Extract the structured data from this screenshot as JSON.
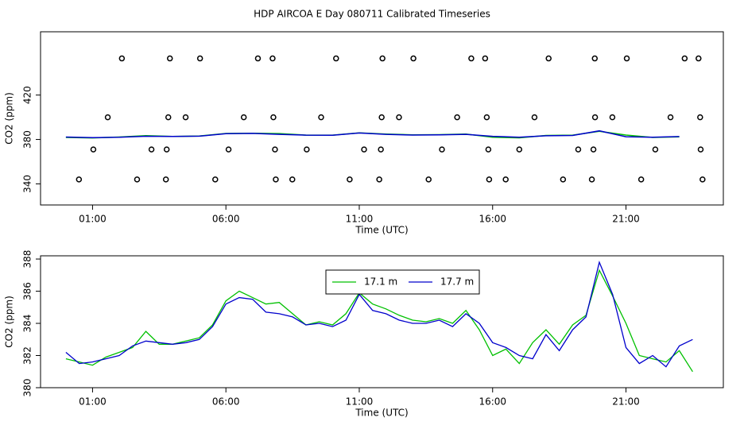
{
  "chart_data": [
    {
      "type": "line",
      "title": "HDP AIRCOA E  Day 080711  Calibrated Timeseries",
      "xlabel": "Time (UTC)",
      "ylabel": "CO2 (ppm)",
      "xlim": [
        -0.95,
        24.65
      ],
      "ylim": [
        321,
        477
      ],
      "xticks": [
        {
          "value": 1,
          "label": "01:00"
        },
        {
          "value": 6,
          "label": "06:00"
        },
        {
          "value": 11,
          "label": "11:00"
        },
        {
          "value": 16,
          "label": "16:00"
        },
        {
          "value": 21,
          "label": "21:00"
        }
      ],
      "yticks": [
        340,
        380,
        420
      ],
      "x": [
        0,
        1,
        2,
        3,
        4,
        5,
        6,
        7,
        8,
        9,
        10,
        11,
        12,
        13,
        14,
        15,
        16,
        17,
        18,
        19,
        20,
        21,
        22,
        23
      ],
      "series": [
        {
          "color": "#00c000",
          "values": [
            381.8,
            381.4,
            382.2,
            383.5,
            382.7,
            383.1,
            385.4,
            385.6,
            385.3,
            383.9,
            383.9,
            385.9,
            384.9,
            384.2,
            384.3,
            384.8,
            382.0,
            381.5,
            383.6,
            383.9,
            387.3,
            384.0,
            381.8,
            382.3
          ]
        },
        {
          "color": "#0000cc",
          "values": [
            382.2,
            381.6,
            382.0,
            382.9,
            382.7,
            383.0,
            385.2,
            385.5,
            384.6,
            383.9,
            383.8,
            385.8,
            384.6,
            384.0,
            384.2,
            384.6,
            382.8,
            382.0,
            383.3,
            383.6,
            387.8,
            382.5,
            382.0,
            382.6
          ]
        }
      ],
      "points": {
        "x": [
          2.1,
          3.9,
          5.03,
          7.2,
          7.75,
          10.13,
          11.87,
          13.03,
          15.2,
          15.72,
          18.1,
          19.83,
          21.03,
          23.2,
          23.72,
          1.57,
          3.84,
          4.49,
          6.67,
          7.78,
          9.57,
          11.84,
          12.49,
          14.67,
          15.78,
          17.57,
          19.84,
          20.49,
          22.67,
          23.78,
          1.03,
          3.21,
          3.78,
          6.1,
          7.84,
          9.03,
          11.18,
          11.81,
          14.1,
          15.84,
          17.0,
          19.21,
          19.78,
          22.1,
          23.8,
          0.49,
          2.67,
          3.75,
          5.6,
          7.87,
          8.49,
          10.64,
          11.75,
          13.6,
          15.87,
          16.49,
          18.64,
          19.72,
          21.57,
          23.87
        ],
        "y": [
          453,
          453,
          453,
          453,
          453,
          453,
          453,
          453,
          453,
          453,
          453,
          453,
          453,
          453,
          453,
          400,
          400,
          400,
          400,
          400,
          400,
          400,
          400,
          400,
          400,
          400,
          400,
          400,
          400,
          400,
          371,
          371,
          371,
          371,
          371,
          371,
          371,
          371,
          371,
          371,
          371,
          371,
          371,
          371,
          371,
          344,
          344,
          344,
          344,
          344,
          344,
          344,
          344,
          344,
          344,
          344,
          344,
          344,
          344,
          344
        ]
      }
    },
    {
      "type": "line",
      "xlabel": "Time (UTC)",
      "ylabel": "CO2 (ppm)",
      "xlim": [
        -0.95,
        24.65
      ],
      "ylim": [
        380,
        388.2
      ],
      "xticks": [
        {
          "value": 1,
          "label": "01:00"
        },
        {
          "value": 6,
          "label": "06:00"
        },
        {
          "value": 11,
          "label": "11:00"
        },
        {
          "value": 16,
          "label": "16:00"
        },
        {
          "value": 21,
          "label": "21:00"
        }
      ],
      "yticks": [
        380,
        382,
        384,
        386,
        388
      ],
      "legend": "top-center",
      "x": [
        0,
        0.5,
        1,
        1.5,
        2,
        2.5,
        3,
        3.5,
        4,
        4.5,
        5,
        5.5,
        6,
        6.5,
        7,
        7.5,
        8,
        8.5,
        9,
        9.5,
        10,
        10.5,
        11,
        11.5,
        12,
        12.5,
        13,
        13.5,
        14,
        14.5,
        15,
        15.5,
        16,
        16.5,
        17,
        17.5,
        18,
        18.5,
        19,
        19.5,
        20,
        20.5,
        21,
        21.5,
        22,
        22.5,
        23,
        23.5
      ],
      "series": [
        {
          "name": "17.1 m",
          "color": "#00c000",
          "values": [
            381.8,
            381.6,
            381.4,
            381.9,
            382.2,
            382.5,
            383.5,
            382.7,
            382.7,
            382.9,
            383.1,
            383.9,
            385.4,
            386.0,
            385.6,
            385.2,
            385.3,
            384.6,
            383.9,
            384.1,
            383.9,
            384.6,
            385.9,
            385.2,
            384.9,
            384.5,
            384.2,
            384.1,
            384.3,
            384.0,
            384.8,
            383.6,
            382.0,
            382.4,
            381.5,
            382.8,
            383.6,
            382.7,
            383.9,
            384.5,
            387.3,
            385.7,
            384.0,
            382.0,
            381.8,
            381.6,
            382.3,
            381.0
          ]
        },
        {
          "name": "17.7 m",
          "color": "#0000cc",
          "values": [
            382.2,
            381.5,
            381.6,
            381.8,
            382.0,
            382.6,
            382.9,
            382.8,
            382.7,
            382.8,
            383.0,
            383.8,
            385.2,
            385.6,
            385.5,
            384.7,
            384.6,
            384.4,
            383.9,
            384.0,
            383.8,
            384.2,
            385.8,
            384.8,
            384.6,
            384.2,
            384.0,
            384.0,
            384.2,
            383.8,
            384.6,
            384.0,
            382.8,
            382.5,
            382.0,
            381.8,
            383.3,
            382.3,
            383.6,
            384.4,
            387.8,
            385.8,
            382.5,
            381.5,
            382.0,
            381.3,
            382.6,
            383.0
          ]
        }
      ]
    }
  ]
}
